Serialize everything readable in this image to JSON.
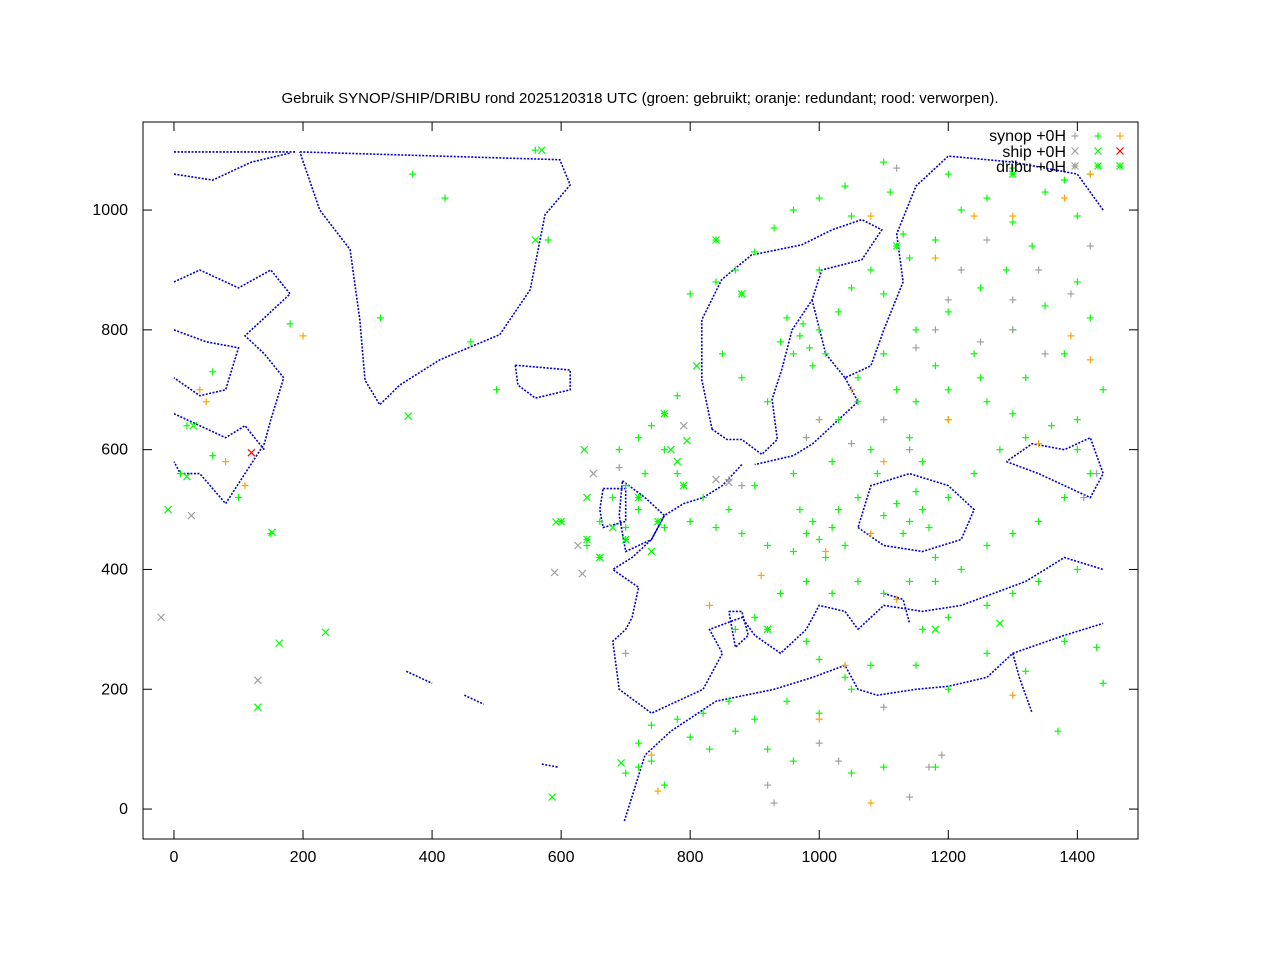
{
  "chart_data": {
    "type": "scatter",
    "title": "Gebruik SYNOP/SHIP/DRIBU rond 2025120318 UTC (groen: gebruikt; oranje: redundant; rood: verworpen).",
    "xlabel": "",
    "ylabel": "",
    "xlim": [
      -48,
      1494
    ],
    "ylim": [
      -50,
      1147
    ],
    "xticks": [
      "0",
      "200",
      "400",
      "600",
      "800",
      "1000",
      "1200",
      "1400"
    ],
    "yticks": [
      "0",
      "200",
      "400",
      "600",
      "800",
      "1000"
    ],
    "grid": false,
    "legend_position": "top-right",
    "background": "coastline map (blue)",
    "colors": {
      "used": "#00ff00",
      "redundant": "#ffa500",
      "rejected": "#ff0000",
      "other": "#a0a0a0",
      "coast": "#0000cc"
    },
    "legend": [
      {
        "label": "synop +0H",
        "marker": "plus",
        "colors": [
          "#a0a0a0",
          "#00ff00",
          "#ffa500"
        ]
      },
      {
        "label": "ship +0H",
        "marker": "cross",
        "colors": [
          "#a0a0a0",
          "#00ff00",
          "#ff0000"
        ]
      },
      {
        "label": "dribu +0H",
        "marker": "star",
        "colors": [
          "#a0a0a0",
          "#00ff00",
          "#00ff00"
        ]
      }
    ],
    "series": [
      {
        "type": "synop",
        "status": "used",
        "marker": "plus",
        "color": "#00ff00",
        "points": [
          [
            970,
            790
          ],
          [
            985,
            770
          ],
          [
            960,
            760
          ],
          [
            1000,
            800
          ],
          [
            990,
            740
          ],
          [
            950,
            820
          ],
          [
            1010,
            760
          ],
          [
            975,
            810
          ],
          [
            940,
            780
          ],
          [
            1030,
            830
          ],
          [
            1050,
            870
          ],
          [
            1080,
            900
          ],
          [
            1100,
            860
          ],
          [
            1140,
            920
          ],
          [
            1180,
            950
          ],
          [
            1220,
            1000
          ],
          [
            1260,
            1020
          ],
          [
            1300,
            980
          ],
          [
            1350,
            1030
          ],
          [
            1380,
            1050
          ],
          [
            1400,
            990
          ],
          [
            1330,
            940
          ],
          [
            1290,
            900
          ],
          [
            1250,
            870
          ],
          [
            1200,
            830
          ],
          [
            1150,
            800
          ],
          [
            1100,
            760
          ],
          [
            1060,
            720
          ],
          [
            1120,
            700
          ],
          [
            1180,
            740
          ],
          [
            1240,
            760
          ],
          [
            1300,
            800
          ],
          [
            1350,
            840
          ],
          [
            1400,
            880
          ],
          [
            1420,
            820
          ],
          [
            1380,
            760
          ],
          [
            1320,
            720
          ],
          [
            1260,
            680
          ],
          [
            1200,
            650
          ],
          [
            1140,
            620
          ],
          [
            1080,
            600
          ],
          [
            1020,
            580
          ],
          [
            960,
            560
          ],
          [
            900,
            540
          ],
          [
            860,
            500
          ],
          [
            820,
            520
          ],
          [
            780,
            560
          ],
          [
            760,
            600
          ],
          [
            740,
            640
          ],
          [
            720,
            500
          ],
          [
            700,
            470
          ],
          [
            760,
            470
          ],
          [
            800,
            480
          ],
          [
            840,
            470
          ],
          [
            880,
            460
          ],
          [
            920,
            440
          ],
          [
            960,
            430
          ],
          [
            980,
            460
          ],
          [
            1000,
            450
          ],
          [
            1010,
            420
          ],
          [
            1020,
            470
          ],
          [
            1040,
            440
          ],
          [
            990,
            480
          ],
          [
            970,
            500
          ],
          [
            1030,
            500
          ],
          [
            1060,
            520
          ],
          [
            1100,
            490
          ],
          [
            1120,
            510
          ],
          [
            1140,
            480
          ],
          [
            1150,
            530
          ],
          [
            1160,
            500
          ],
          [
            1130,
            460
          ],
          [
            1170,
            470
          ],
          [
            1180,
            420
          ],
          [
            1200,
            520
          ],
          [
            1240,
            560
          ],
          [
            1280,
            600
          ],
          [
            1320,
            620
          ],
          [
            1360,
            640
          ],
          [
            1400,
            600
          ],
          [
            1420,
            560
          ],
          [
            1380,
            520
          ],
          [
            1340,
            480
          ],
          [
            1300,
            460
          ],
          [
            1260,
            440
          ],
          [
            1220,
            400
          ],
          [
            1180,
            380
          ],
          [
            1140,
            380
          ],
          [
            1100,
            360
          ],
          [
            1060,
            380
          ],
          [
            1020,
            360
          ],
          [
            980,
            380
          ],
          [
            940,
            360
          ],
          [
            900,
            320
          ],
          [
            870,
            300
          ],
          [
            980,
            280
          ],
          [
            1000,
            250
          ],
          [
            1040,
            220
          ],
          [
            1080,
            240
          ],
          [
            1160,
            300
          ],
          [
            1200,
            320
          ],
          [
            1260,
            340
          ],
          [
            1300,
            360
          ],
          [
            1340,
            380
          ],
          [
            1400,
            400
          ],
          [
            1430,
            270
          ],
          [
            1380,
            280
          ],
          [
            1320,
            230
          ],
          [
            1260,
            260
          ],
          [
            1200,
            200
          ],
          [
            1150,
            240
          ],
          [
            1050,
            200
          ],
          [
            1000,
            160
          ],
          [
            950,
            180
          ],
          [
            900,
            150
          ],
          [
            860,
            180
          ],
          [
            820,
            160
          ],
          [
            780,
            150
          ],
          [
            740,
            140
          ],
          [
            720,
            110
          ],
          [
            700,
            60
          ],
          [
            720,
            70
          ],
          [
            740,
            80
          ],
          [
            760,
            40
          ],
          [
            800,
            120
          ],
          [
            830,
            100
          ],
          [
            870,
            130
          ],
          [
            920,
            100
          ],
          [
            960,
            80
          ],
          [
            1050,
            60
          ],
          [
            1100,
            70
          ],
          [
            1180,
            70
          ],
          [
            1370,
            130
          ],
          [
            1440,
            210
          ],
          [
            1030,
            650
          ],
          [
            1060,
            680
          ],
          [
            920,
            680
          ],
          [
            880,
            720
          ],
          [
            850,
            760
          ],
          [
            800,
            860
          ],
          [
            840,
            880
          ],
          [
            870,
            900
          ],
          [
            900,
            930
          ],
          [
            930,
            970
          ],
          [
            960,
            1000
          ],
          [
            1000,
            1020
          ],
          [
            1040,
            1040
          ],
          [
            1100,
            1080
          ],
          [
            1200,
            1060
          ],
          [
            1300,
            1070
          ],
          [
            1420,
            1060
          ],
          [
            1400,
            650
          ],
          [
            1440,
            700
          ],
          [
            1250,
            720
          ],
          [
            1200,
            700
          ],
          [
            1150,
            680
          ],
          [
            1300,
            660
          ],
          [
            180,
            810
          ],
          [
            60,
            730
          ],
          [
            20,
            640
          ],
          [
            10,
            560
          ],
          [
            100,
            520
          ],
          [
            60,
            590
          ],
          [
            150,
            460
          ],
          [
            580,
            950
          ],
          [
            560,
            1100
          ],
          [
            370,
            1060
          ],
          [
            420,
            1020
          ],
          [
            460,
            780
          ],
          [
            500,
            700
          ],
          [
            320,
            820
          ],
          [
            700,
            540
          ],
          [
            730,
            560
          ],
          [
            680,
            520
          ],
          [
            660,
            480
          ],
          [
            640,
            440
          ],
          [
            690,
            600
          ],
          [
            720,
            620
          ],
          [
            760,
            660
          ],
          [
            780,
            690
          ],
          [
            1110,
            1030
          ],
          [
            1050,
            990
          ],
          [
            1130,
            960
          ],
          [
            1000,
            900
          ],
          [
            1160,
            580
          ],
          [
            1090,
            560
          ]
        ]
      },
      {
        "type": "synop",
        "status": "redundant",
        "marker": "plus",
        "color": "#ffa500",
        "points": [
          [
            1420,
            1060
          ],
          [
            1380,
            1020
          ],
          [
            1080,
            990
          ],
          [
            1240,
            990
          ],
          [
            1200,
            650
          ],
          [
            1050,
            700
          ],
          [
            1100,
            580
          ],
          [
            1080,
            460
          ],
          [
            1010,
            430
          ],
          [
            1340,
            610
          ],
          [
            1420,
            750
          ],
          [
            1300,
            990
          ],
          [
            1300,
            190
          ],
          [
            1000,
            150
          ],
          [
            1080,
            10
          ],
          [
            740,
            90
          ],
          [
            750,
            30
          ],
          [
            910,
            390
          ],
          [
            830,
            340
          ],
          [
            1120,
            350
          ],
          [
            1040,
            240
          ],
          [
            80,
            580
          ],
          [
            50,
            680
          ],
          [
            200,
            790
          ],
          [
            1390,
            790
          ],
          [
            1180,
            920
          ],
          [
            110,
            540
          ],
          [
            40,
            700
          ]
        ]
      },
      {
        "type": "synop",
        "status": "other",
        "marker": "plus",
        "color": "#a0a0a0",
        "points": [
          [
            1300,
            800
          ],
          [
            1250,
            780
          ],
          [
            1350,
            760
          ],
          [
            1180,
            800
          ],
          [
            1000,
            650
          ],
          [
            980,
            620
          ],
          [
            1050,
            610
          ],
          [
            1100,
            650
          ],
          [
            1140,
            600
          ],
          [
            1220,
            900
          ],
          [
            1260,
            950
          ],
          [
            1340,
            900
          ],
          [
            1390,
            860
          ],
          [
            1420,
            940
          ],
          [
            1410,
            520
          ],
          [
            1430,
            560
          ],
          [
            1000,
            110
          ],
          [
            1030,
            80
          ],
          [
            920,
            40
          ],
          [
            930,
            10
          ],
          [
            1140,
            20
          ],
          [
            1170,
            70
          ],
          [
            1190,
            90
          ],
          [
            1100,
            170
          ],
          [
            700,
            260
          ],
          [
            860,
            550
          ],
          [
            880,
            540
          ],
          [
            690,
            570
          ],
          [
            1300,
            850
          ],
          [
            1200,
            850
          ],
          [
            1150,
            770
          ],
          [
            1120,
            1070
          ]
        ]
      },
      {
        "type": "ship",
        "status": "used",
        "marker": "cross",
        "color": "#00ff00",
        "points": [
          [
            363,
            656
          ],
          [
            152,
            462
          ],
          [
            163,
            277
          ],
          [
            592,
            479
          ],
          [
            636,
            600
          ],
          [
            693,
            77
          ],
          [
            586,
            20
          ],
          [
            -9,
            500
          ],
          [
            20,
            555
          ],
          [
            235,
            295
          ],
          [
            130,
            170
          ],
          [
            795,
            615
          ],
          [
            760,
            660
          ],
          [
            770,
            600
          ],
          [
            780,
            580
          ],
          [
            1280,
            310
          ],
          [
            1180,
            300
          ],
          [
            680,
            470
          ],
          [
            640,
            520
          ],
          [
            570,
            1100
          ],
          [
            30,
            640
          ],
          [
            560,
            950
          ],
          [
            810,
            740
          ],
          [
            740,
            430
          ]
        ]
      },
      {
        "type": "ship",
        "status": "other",
        "marker": "cross",
        "color": "#a0a0a0",
        "points": [
          [
            27,
            490
          ],
          [
            -20,
            320
          ],
          [
            130,
            215
          ],
          [
            590,
            395
          ],
          [
            633,
            393
          ],
          [
            626,
            440
          ],
          [
            860,
            545
          ],
          [
            840,
            550
          ],
          [
            650,
            560
          ],
          [
            790,
            640
          ]
        ]
      },
      {
        "type": "ship",
        "status": "rejected",
        "marker": "cross",
        "color": "#ff0000",
        "points": [
          [
            120,
            595
          ]
        ]
      },
      {
        "type": "dribu",
        "status": "used",
        "marker": "star",
        "color": "#00ff00",
        "points": [
          [
            640,
            450
          ],
          [
            600,
            480
          ],
          [
            660,
            420
          ],
          [
            700,
            450
          ],
          [
            720,
            520
          ],
          [
            750,
            480
          ],
          [
            790,
            540
          ],
          [
            1120,
            940
          ],
          [
            1300,
            1060
          ],
          [
            920,
            300
          ],
          [
            880,
            860
          ],
          [
            840,
            950
          ]
        ]
      }
    ]
  }
}
